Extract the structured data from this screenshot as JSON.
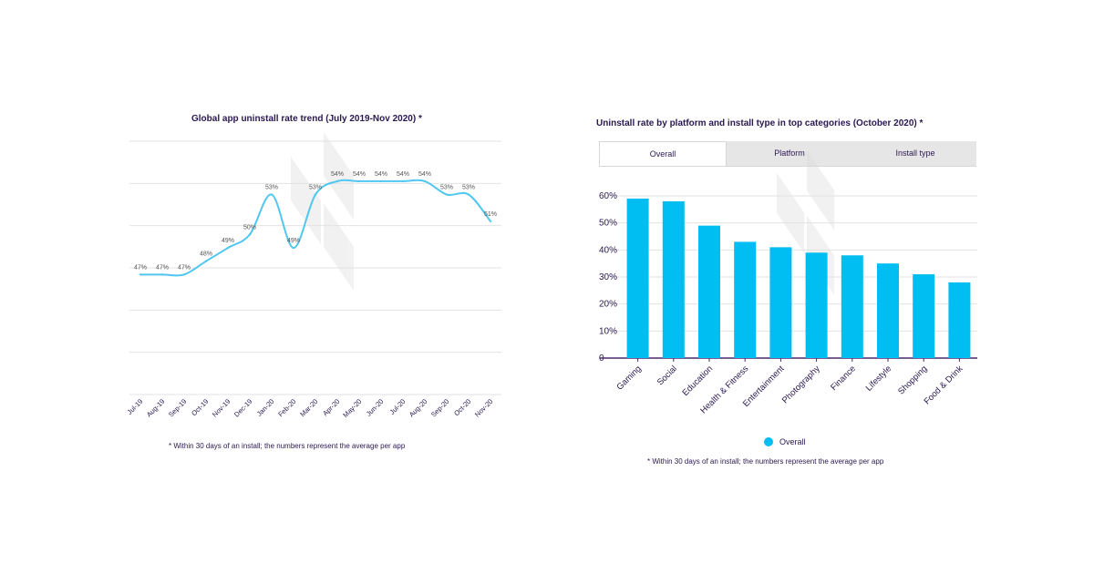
{
  "colors": {
    "text": "#2a1850",
    "line": "#50c7f0",
    "bar": "#00bdf2",
    "grid": "#e2e2e2",
    "axis": "#4a2a6e",
    "watermark": "#d9d9d9"
  },
  "left": {
    "title": "Global app uninstall rate trend (July 2019-Nov 2020) *",
    "footnote": "* Within 30 days of an install; the numbers represent the average per app"
  },
  "right": {
    "title": "Uninstall rate by platform and install type in top categories (October 2020) *",
    "footnote": "* Within 30 days of an install; the numbers represent the average per app",
    "tabs": [
      {
        "label": "Overall",
        "active": true
      },
      {
        "label": "Platform",
        "active": false
      },
      {
        "label": "Install type",
        "active": false
      }
    ],
    "legend": {
      "label": "Overall"
    }
  },
  "chart_data": [
    {
      "type": "line",
      "title": "Global app uninstall rate trend (July 2019-Nov 2020) *",
      "categories": [
        "Jul-19",
        "Aug-19",
        "Sep-19",
        "Oct-19",
        "Nov-19",
        "Dec-19",
        "Jan-20",
        "Feb-20",
        "Mar-20",
        "Apr-20",
        "May-20",
        "Jun-20",
        "Jul-20",
        "Aug-20",
        "Sep-20",
        "Oct-20",
        "Nov-20"
      ],
      "values": [
        47,
        47,
        47,
        48,
        49,
        50,
        53,
        49,
        53,
        54,
        54,
        54,
        54,
        54,
        53,
        53,
        51
      ],
      "data_labels": [
        "47%",
        "47%",
        "47%",
        "48%",
        "49%",
        "50%",
        "53%",
        "49%",
        "53%",
        "54%",
        "54%",
        "54%",
        "54%",
        "54%",
        "53%",
        "53%",
        "51%"
      ],
      "ylim": [
        38,
        57
      ],
      "grid": true,
      "legend": "none"
    },
    {
      "type": "bar",
      "title": "Uninstall rate by platform and install type in top categories (October 2020) *",
      "categories": [
        "Gaming",
        "Social",
        "Education",
        "Health & Fitness",
        "Entertainment",
        "Photography",
        "Finance",
        "Lifestyle",
        "Shopping",
        "Food & Drink"
      ],
      "series": [
        {
          "name": "Overall",
          "values": [
            59,
            58,
            49,
            43,
            41,
            39,
            38,
            35,
            31,
            28
          ]
        }
      ],
      "ytick_labels": [
        "0",
        "10%",
        "20%",
        "30%",
        "40%",
        "50%",
        "60%"
      ],
      "ylim": [
        0,
        60
      ],
      "grid": true,
      "legend": "bottom"
    }
  ]
}
